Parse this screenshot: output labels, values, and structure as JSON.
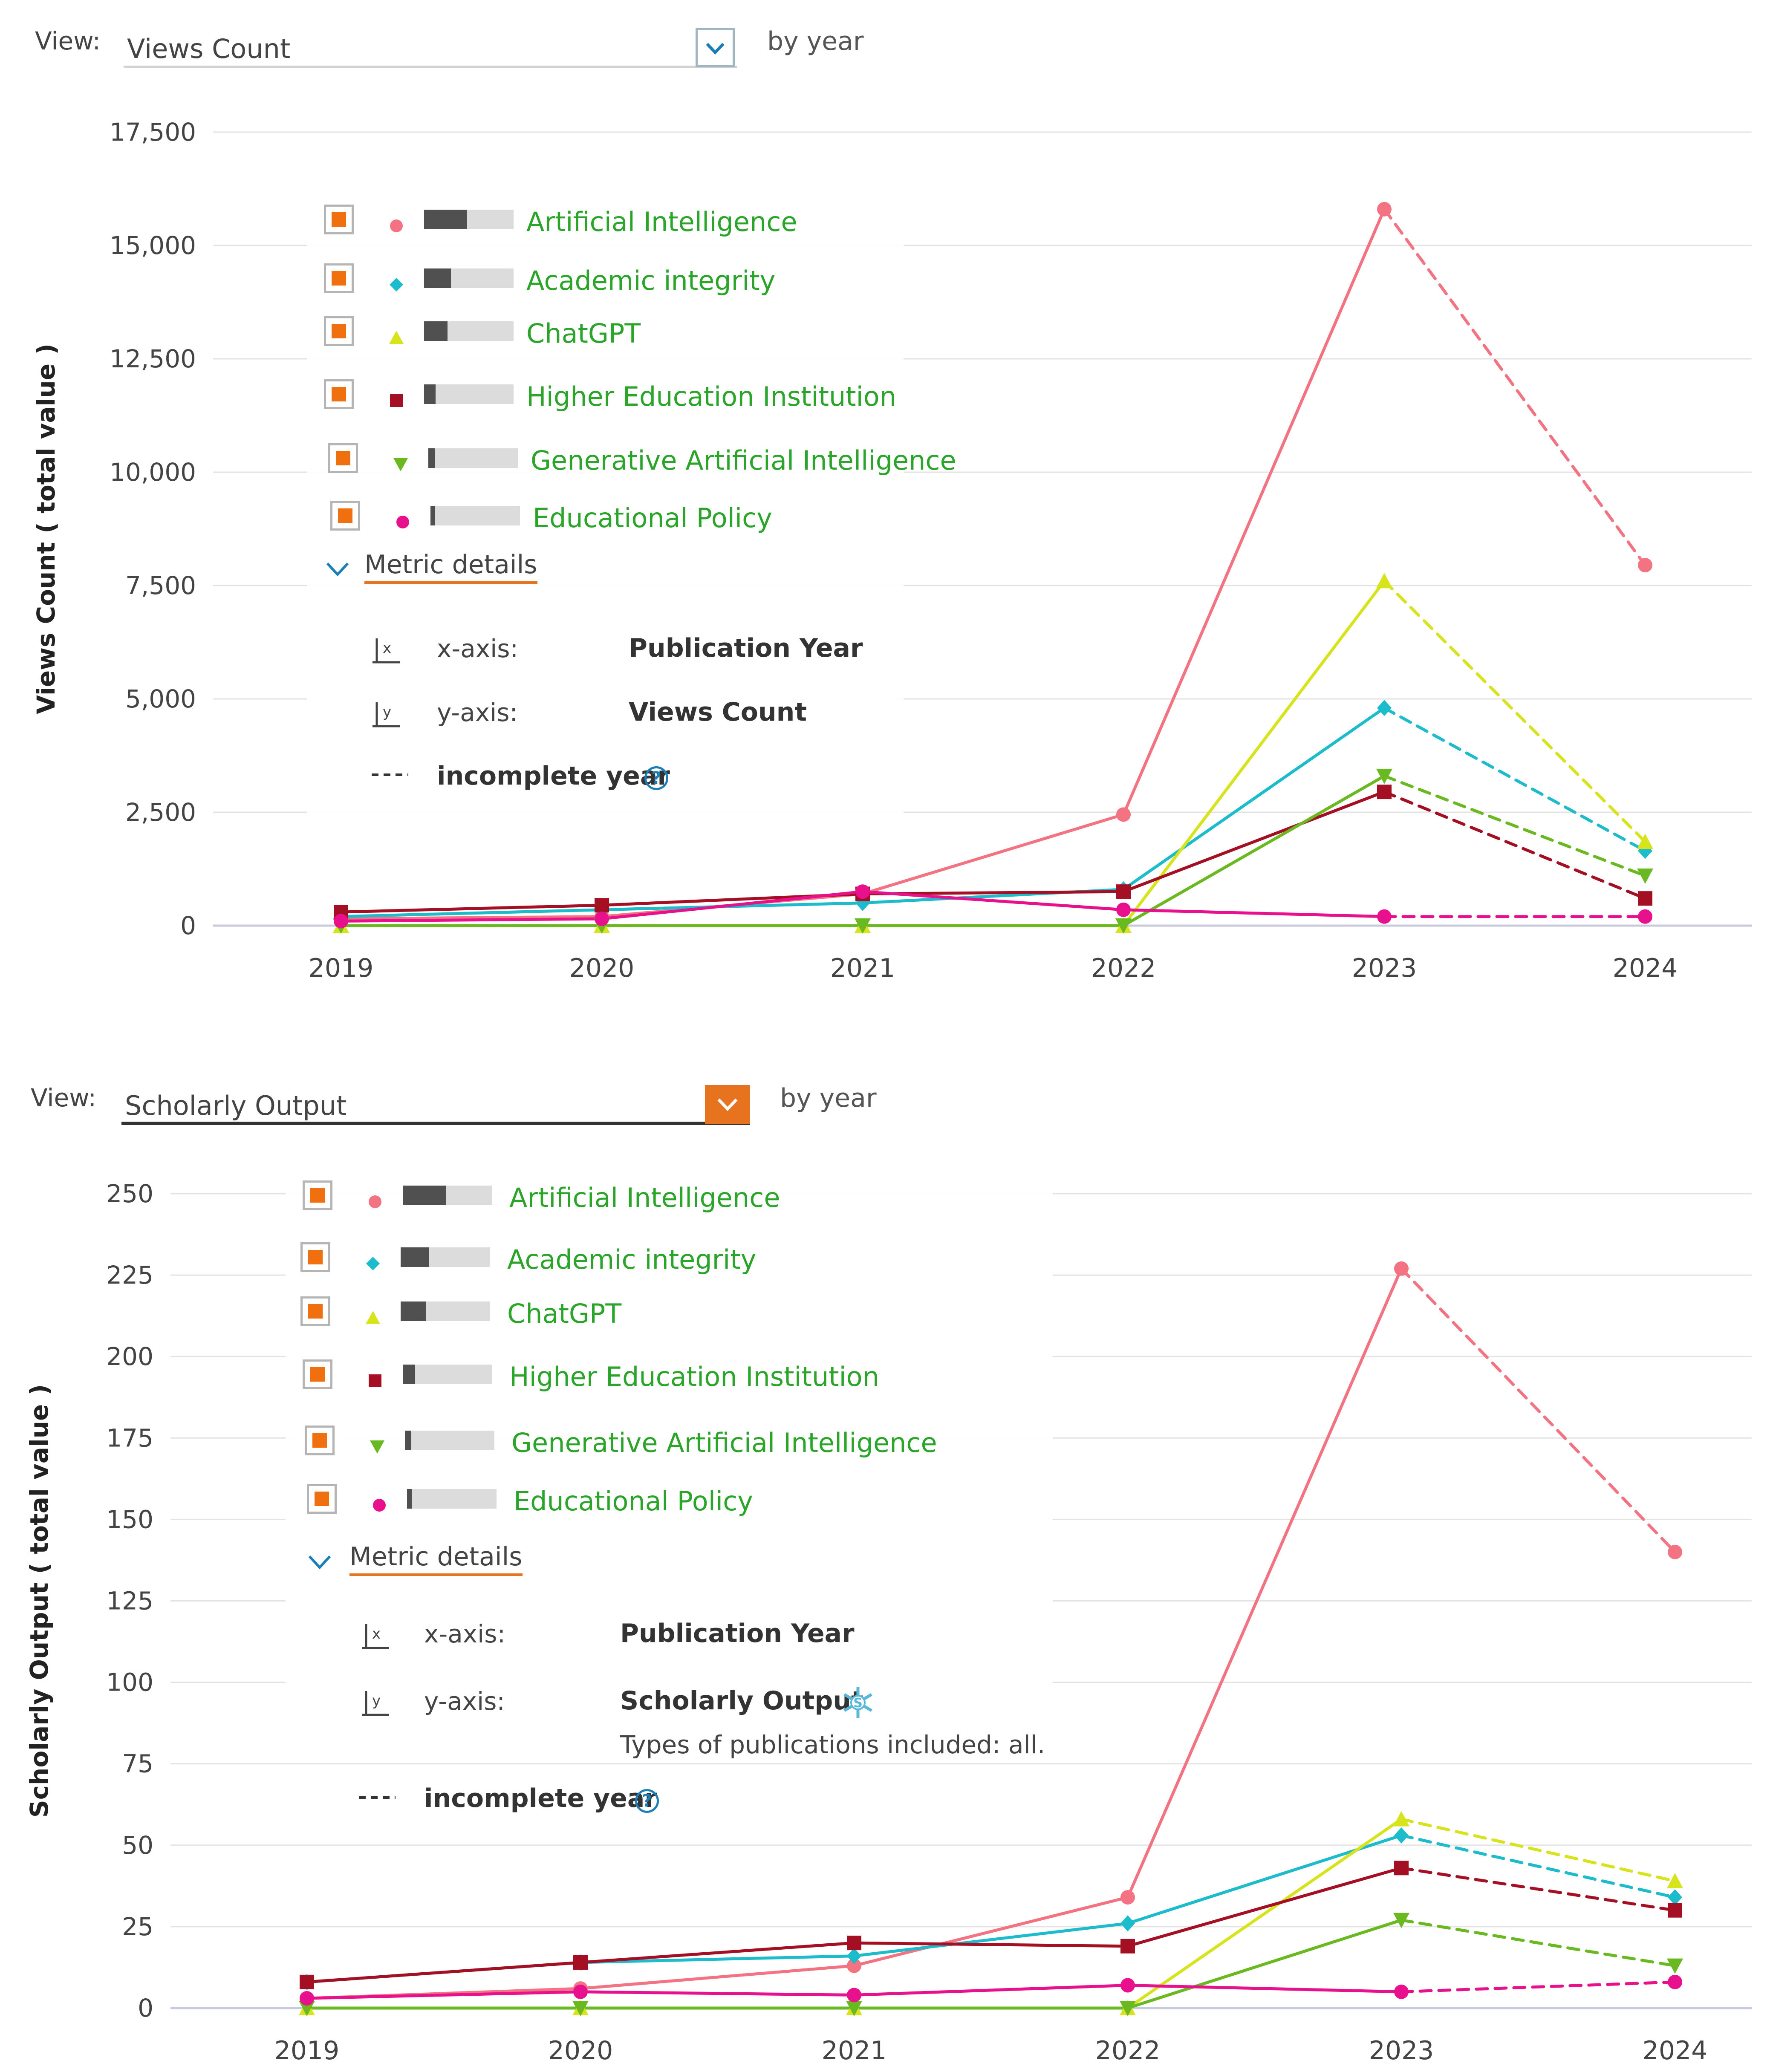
{
  "panels": [
    {
      "view_label": "View:",
      "selected_metric": "Views Count",
      "by_year_label": "by year",
      "legend": [
        {
          "label": "Artificial Intelligence",
          "marker": "circle-icon",
          "color": "#f47382",
          "bar_fraction": 0.48
        },
        {
          "label": "Academic integrity",
          "marker": "diamond-icon",
          "color": "#1cbccc",
          "bar_fraction": 0.3
        },
        {
          "label": "ChatGPT",
          "marker": "triangle-up-icon",
          "color": "#d7e41c",
          "bar_fraction": 0.26
        },
        {
          "label": "Higher Education Institution",
          "marker": "square-icon",
          "color": "#a50f23",
          "bar_fraction": 0.13
        },
        {
          "label": "Generative Artificial Intelligence",
          "marker": "triangle-down-icon",
          "color": "#6ab921",
          "bar_fraction": 0.07
        },
        {
          "label": "Educational Policy",
          "marker": "circle-icon",
          "color": "#e8108d",
          "bar_fraction": 0.05
        }
      ],
      "metric_details": {
        "header": "Metric details",
        "x_axis_label": "x-axis:",
        "x_axis_value": "Publication Year",
        "y_axis_label": "y-axis:",
        "y_axis_value": "Views Count",
        "incomplete_label": "incomplete year",
        "help_glyph": "?"
      }
    },
    {
      "view_label": "View:",
      "selected_metric": "Scholarly Output",
      "by_year_label": "by year",
      "legend": [
        {
          "label": "Artificial Intelligence",
          "marker": "circle-icon",
          "color": "#f47382",
          "bar_fraction": 0.48
        },
        {
          "label": "Academic integrity",
          "marker": "diamond-icon",
          "color": "#1cbccc",
          "bar_fraction": 0.32
        },
        {
          "label": "ChatGPT",
          "marker": "triangle-up-icon",
          "color": "#d7e41c",
          "bar_fraction": 0.28
        },
        {
          "label": "Higher Education Institution",
          "marker": "square-icon",
          "color": "#a50f23",
          "bar_fraction": 0.14
        },
        {
          "label": "Generative Artificial Intelligence",
          "marker": "triangle-down-icon",
          "color": "#6ab921",
          "bar_fraction": 0.07
        },
        {
          "label": "Educational Policy",
          "marker": "circle-icon",
          "color": "#e8108d",
          "bar_fraction": 0.05
        }
      ],
      "metric_details": {
        "header": "Metric details",
        "x_axis_label": "x-axis:",
        "x_axis_value": "Publication Year",
        "y_axis_label": "y-axis:",
        "y_axis_value": "Scholarly Output",
        "y_axis_note": "Types of publications included: all.",
        "incomplete_label": "incomplete year",
        "help_glyph": "?"
      }
    }
  ],
  "chart_data": [
    {
      "type": "line",
      "ylabel": "Views Count ( total value )",
      "x": [
        "2019",
        "2020",
        "2021",
        "2022",
        "2023",
        "2024"
      ],
      "ylim": [
        0,
        17500
      ],
      "yticks": [
        0,
        2500,
        5000,
        7500,
        10000,
        12500,
        15000,
        17500
      ],
      "ytick_labels": [
        "0",
        "2,500",
        "5,000",
        "7,500",
        "10,000",
        "12,500",
        "15,000",
        "17,500"
      ],
      "incomplete_from_year": "2023",
      "grid": true,
      "series": [
        {
          "name": "Artificial Intelligence",
          "marker": "circle",
          "color": "#f47382",
          "values": [
            150,
            200,
            700,
            2450,
            15800,
            7950
          ]
        },
        {
          "name": "Academic integrity",
          "marker": "diamond",
          "color": "#1cbccc",
          "values": [
            200,
            350,
            500,
            800,
            4800,
            1650
          ]
        },
        {
          "name": "ChatGPT",
          "marker": "triangle-up",
          "color": "#d7e41c",
          "values": [
            0,
            0,
            0,
            0,
            7600,
            1850
          ]
        },
        {
          "name": "Higher Education Institution",
          "marker": "square",
          "color": "#a50f23",
          "values": [
            300,
            450,
            700,
            750,
            2950,
            600
          ]
        },
        {
          "name": "Generative Artificial Intelligence",
          "marker": "triangle-down",
          "color": "#6ab921",
          "values": [
            0,
            0,
            0,
            0,
            3300,
            1100
          ]
        },
        {
          "name": "Educational Policy",
          "marker": "circle",
          "color": "#e8108d",
          "values": [
            100,
            150,
            750,
            350,
            200,
            200
          ]
        }
      ]
    },
    {
      "type": "line",
      "ylabel": "Scholarly Output ( total value )",
      "x": [
        "2019",
        "2020",
        "2021",
        "2022",
        "2023",
        "2024"
      ],
      "ylim": [
        0,
        250
      ],
      "yticks": [
        0,
        25,
        50,
        75,
        100,
        125,
        150,
        175,
        200,
        225,
        250
      ],
      "ytick_labels": [
        "0",
        "25",
        "50",
        "75",
        "100",
        "125",
        "150",
        "175",
        "200",
        "225",
        "250"
      ],
      "incomplete_from_year": "2023",
      "grid": true,
      "series": [
        {
          "name": "Artificial Intelligence",
          "marker": "circle",
          "color": "#f47382",
          "values": [
            3,
            6,
            13,
            34,
            227,
            140
          ]
        },
        {
          "name": "Academic integrity",
          "marker": "diamond",
          "color": "#1cbccc",
          "values": [
            8,
            14,
            16,
            26,
            53,
            34
          ]
        },
        {
          "name": "ChatGPT",
          "marker": "triangle-up",
          "color": "#d7e41c",
          "values": [
            0,
            0,
            0,
            0,
            58,
            39
          ]
        },
        {
          "name": "Higher Education Institution",
          "marker": "square",
          "color": "#a50f23",
          "values": [
            8,
            14,
            20,
            19,
            43,
            30
          ]
        },
        {
          "name": "Generative Artificial Intelligence",
          "marker": "triangle-down",
          "color": "#6ab921",
          "values": [
            0,
            0,
            0,
            0,
            27,
            13
          ]
        },
        {
          "name": "Educational Policy",
          "marker": "circle",
          "color": "#e8108d",
          "values": [
            3,
            5,
            4,
            7,
            5,
            8
          ]
        }
      ]
    }
  ]
}
